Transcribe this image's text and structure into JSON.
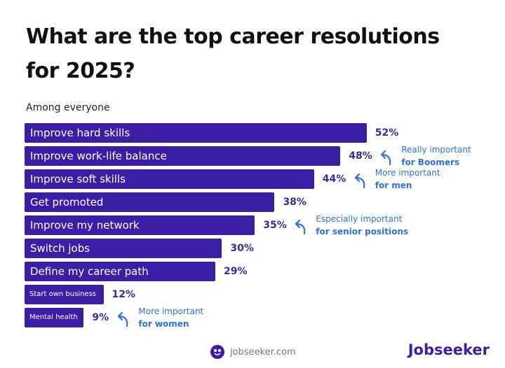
{
  "chart_data": {
    "type": "bar",
    "orientation": "horizontal",
    "title": "What are the top career resolutions for 2025?",
    "subtitle": "Among everyone",
    "categories": [
      "Improve hard skills",
      "Improve work-life balance",
      "Improve soft skills",
      "Get promoted",
      "Improve my network",
      "Switch jobs",
      "Define my career path",
      "Start own business",
      "Mental health"
    ],
    "values": [
      52,
      48,
      44,
      38,
      35,
      30,
      29,
      12,
      9
    ],
    "value_labels": [
      "52%",
      "48%",
      "44%",
      "38%",
      "35%",
      "30%",
      "29%",
      "12%",
      "9%"
    ],
    "bar_color": "#3a1fa6",
    "annotations": [
      {
        "category_index": 1,
        "text": "Really important",
        "bold": "for Boomers"
      },
      {
        "category_index": 2,
        "text": "More important",
        "bold": "for men"
      },
      {
        "category_index": 4,
        "text": "Especially important",
        "bold": "for senior positions"
      },
      {
        "category_index": 8,
        "text": "More important",
        "bold": "for women"
      }
    ],
    "annotation_color": "#2f6fe0"
  },
  "footer": {
    "site": "jobseeker.com",
    "brand": "Jobseeker"
  }
}
